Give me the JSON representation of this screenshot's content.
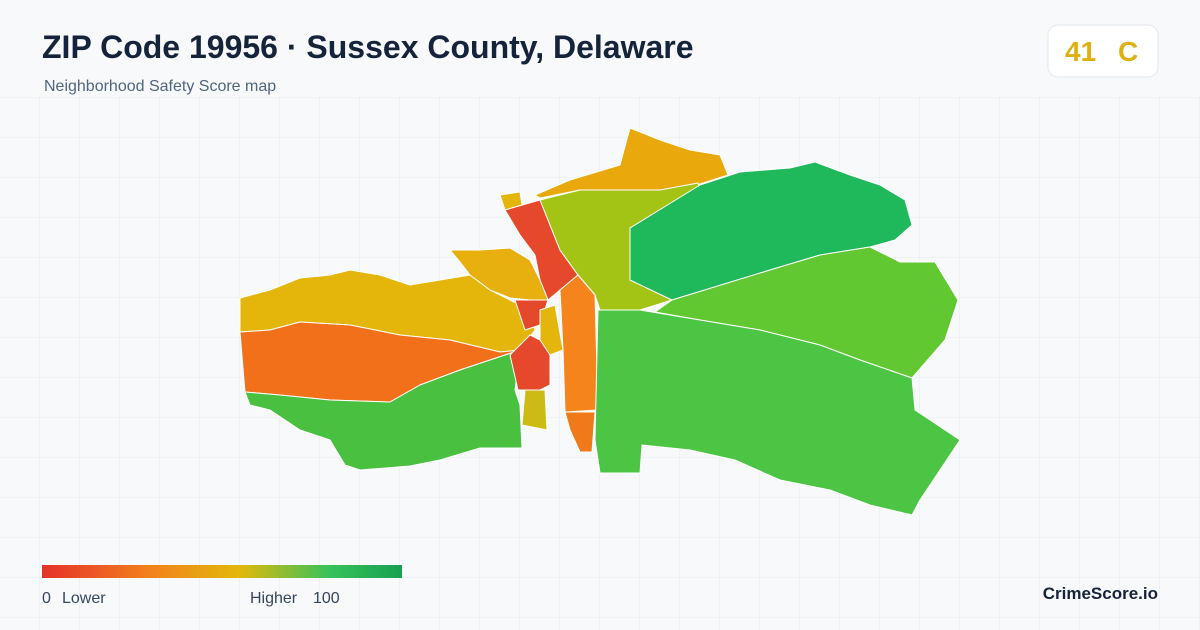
{
  "header": {
    "title": "ZIP Code 19956 · Sussex County, Delaware",
    "subtitle": "Neighborhood Safety Score map"
  },
  "score": {
    "value": 41,
    "grade": "C"
  },
  "legend": {
    "min": 0,
    "min_label": "Lower",
    "max_label": "Higher",
    "max": 100
  },
  "brand": "CrimeScore.io"
}
